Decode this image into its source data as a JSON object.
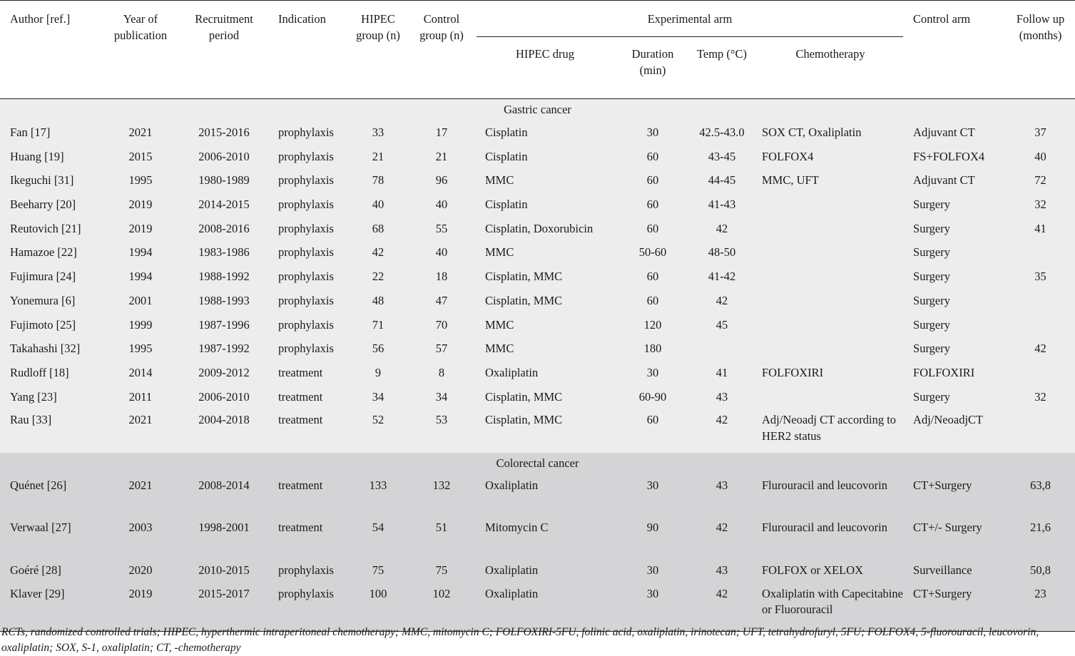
{
  "headers": {
    "author": "Author [ref.]",
    "year": "Year of publication",
    "recruitment": "Recruitment period",
    "indication": "Indication",
    "hipec_group": "HIPEC group (n)",
    "control_group": "Control group (n)",
    "experimental_arm": "Experimental arm",
    "hipec_drug": "HIPEC drug",
    "duration": "Duration (min)",
    "temp": "Temp (°C)",
    "chemotherapy": "Chemotherapy",
    "control_arm": "Control arm",
    "follow_up": "Follow up (months)"
  },
  "sections": {
    "gastric": "Gastric cancer",
    "colorectal": "Colorectal cancer"
  },
  "gastric_rows": [
    {
      "author": "Fan [17]",
      "year": "2021",
      "period": "2015-2016",
      "indication": "prophylaxis",
      "hipec_n": "33",
      "control_n": "17",
      "drug": "Cisplatin",
      "duration": "30",
      "temp": "42.5-43.0",
      "chemo": "SOX CT, Oxaliplatin",
      "control_arm": "Adjuvant CT",
      "follow_up": "37"
    },
    {
      "author": "Huang [19]",
      "year": "2015",
      "period": "2006-2010",
      "indication": "prophylaxis",
      "hipec_n": "21",
      "control_n": "21",
      "drug": "Cisplatin",
      "duration": "60",
      "temp": "43-45",
      "chemo": "FOLFOX4",
      "control_arm": "FS+FOLFOX4",
      "follow_up": "40"
    },
    {
      "author": "Ikeguchi [31]",
      "year": "1995",
      "period": "1980-1989",
      "indication": "prophylaxis",
      "hipec_n": "78",
      "control_n": "96",
      "drug": "MMC",
      "duration": "60",
      "temp": "44-45",
      "chemo": "MMC, UFT",
      "control_arm": "Adjuvant CT",
      "follow_up": "72"
    },
    {
      "author": "Beeharry [20]",
      "year": "2019",
      "period": "2014-2015",
      "indication": "prophylaxis",
      "hipec_n": "40",
      "control_n": "40",
      "drug": "Cisplatin",
      "duration": "60",
      "temp": "41-43",
      "chemo": "",
      "control_arm": "Surgery",
      "follow_up": "32"
    },
    {
      "author": "Reutovich [21]",
      "year": "2019",
      "period": "2008-2016",
      "indication": "prophylaxis",
      "hipec_n": "68",
      "control_n": "55",
      "drug": "Cisplatin, Doxorubicin",
      "duration": "60",
      "temp": "42",
      "chemo": "",
      "control_arm": "Surgery",
      "follow_up": "41"
    },
    {
      "author": "Hamazoe [22]",
      "year": "1994",
      "period": "1983-1986",
      "indication": "prophylaxis",
      "hipec_n": "42",
      "control_n": "40",
      "drug": "MMC",
      "duration": "50-60",
      "temp": "48-50",
      "chemo": "",
      "control_arm": "Surgery",
      "follow_up": ""
    },
    {
      "author": "Fujimura [24]",
      "year": "1994",
      "period": "1988-1992",
      "indication": "prophylaxis",
      "hipec_n": "22",
      "control_n": "18",
      "drug": "Cisplatin, MMC",
      "duration": "60",
      "temp": "41-42",
      "chemo": "",
      "control_arm": "Surgery",
      "follow_up": "35"
    },
    {
      "author": "Yonemura [6]",
      "year": "2001",
      "period": "1988-1993",
      "indication": "prophylaxis",
      "hipec_n": "48",
      "control_n": "47",
      "drug": "Cisplatin, MMC",
      "duration": "60",
      "temp": "42",
      "chemo": "",
      "control_arm": "Surgery",
      "follow_up": ""
    },
    {
      "author": "Fujimoto [25]",
      "year": "1999",
      "period": "1987-1996",
      "indication": "prophylaxis",
      "hipec_n": "71",
      "control_n": "70",
      "drug": "MMC",
      "duration": "120",
      "temp": "45",
      "chemo": "",
      "control_arm": "Surgery",
      "follow_up": ""
    },
    {
      "author": "Takahashi [32]",
      "year": "1995",
      "period": "1987-1992",
      "indication": "prophylaxis",
      "hipec_n": "56",
      "control_n": "57",
      "drug": "MMC",
      "duration": "180",
      "temp": "",
      "chemo": "",
      "control_arm": "Surgery",
      "follow_up": "42"
    },
    {
      "author": "Rudloff [18]",
      "year": "2014",
      "period": "2009-2012",
      "indication": "treatment",
      "hipec_n": "9",
      "control_n": "8",
      "drug": "Oxaliplatin",
      "duration": "30",
      "temp": "41",
      "chemo": "FOLFOXIRI",
      "control_arm": "FOLFOXIRI",
      "follow_up": ""
    },
    {
      "author": "Yang [23]",
      "year": "2011",
      "period": "2006-2010",
      "indication": "treatment",
      "hipec_n": "34",
      "control_n": "34",
      "drug": "Cisplatin, MMC",
      "duration": "60-90",
      "temp": "43",
      "chemo": "",
      "control_arm": "Surgery",
      "follow_up": "32"
    },
    {
      "author": "Rau [33]",
      "year": "2021",
      "period": "2004-2018",
      "indication": "treatment",
      "hipec_n": "52",
      "control_n": "53",
      "drug": "Cisplatin, MMC",
      "duration": "60",
      "temp": "42",
      "chemo": "Adj/Neoadj CT according to HER2 status",
      "control_arm": "Adj/NeoadjCT",
      "follow_up": ""
    }
  ],
  "colorectal_rows": [
    {
      "author": "Quénet [26]",
      "year": "2021",
      "period": "2008-2014",
      "indication": "treatment",
      "hipec_n": "133",
      "control_n": "132",
      "drug": "Oxaliplatin",
      "duration": "30",
      "temp": "43",
      "chemo": "Flurouracil and leucovorin",
      "control_arm": "CT+Surgery",
      "follow_up": "63,8"
    },
    {
      "author": "Verwaal [27]",
      "year": "2003",
      "period": "1998-2001",
      "indication": "treatment",
      "hipec_n": "54",
      "control_n": "51",
      "drug": "Mitomycin C",
      "duration": "90",
      "temp": "42",
      "chemo": "Flurouracil and leucovorin",
      "control_arm": "CT+/- Surgery",
      "follow_up": "21,6"
    },
    {
      "author": "Goéré [28]",
      "year": "2020",
      "period": "2010-2015",
      "indication": "prophylaxis",
      "hipec_n": "75",
      "control_n": "75",
      "drug": "Oxaliplatin",
      "duration": "30",
      "temp": "43",
      "chemo": "FOLFOX or XELOX",
      "control_arm": "Surveillance",
      "follow_up": "50,8"
    },
    {
      "author": "Klaver [29]",
      "year": "2019",
      "period": "2015-2017",
      "indication": "prophylaxis",
      "hipec_n": "100",
      "control_n": "102",
      "drug": "Oxaliplatin",
      "duration": "30",
      "temp": "42",
      "chemo": "Oxaliplatin with Capecitabine or Fluorouracil",
      "control_arm": "CT+Surgery",
      "follow_up": "23"
    }
  ],
  "footnote": "RCTs, randomized controlled trials; HIPEC, hyperthermic intraperitoneal chemotherapy; MMC, mitomycin C; FOLFOXIRI-5FU, folinic acid, oxaliplatin, irinotecan; UFT, tetrahydrofuryl, 5FU; FOLFOX4, 5-fluorouracil, leucovorin, oxaliplatin; SOX, S-1, oxaliplatin; CT, -chemotherapy"
}
